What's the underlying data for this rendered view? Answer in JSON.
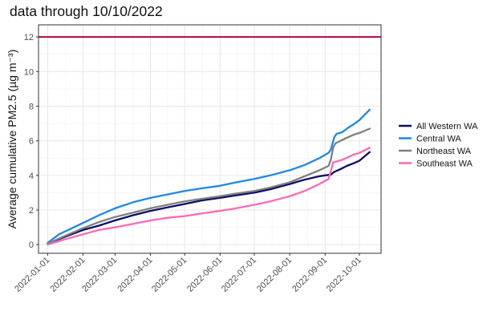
{
  "chart_data": {
    "type": "line",
    "title": "data through 10/10/2022",
    "ylabel": "Average cumulative PM2.5 (µg m⁻³)",
    "xlabel": "",
    "x_tick_labels": [
      "2022-01-01",
      "2022-02-01",
      "2022-03-01",
      "2022-04-01",
      "2022-05-01",
      "2022-06-01",
      "2022-07-01",
      "2022-08-01",
      "2022-09-01",
      "2022-10-01"
    ],
    "x_tick_days": [
      0,
      31,
      59,
      90,
      120,
      151,
      181,
      212,
      243,
      273
    ],
    "xlim_days": [
      -8,
      292
    ],
    "ylim": [
      -0.5,
      12.7
    ],
    "y_ticks": [
      0,
      2,
      4,
      6,
      8,
      10,
      12
    ],
    "grid": true,
    "legend_position": "right",
    "reference_line": {
      "y": 12,
      "color": "#b0004d"
    },
    "series": [
      {
        "name": "All Western WA",
        "color": "#0b0b6b",
        "x": [
          0,
          15,
          31,
          45,
          59,
          75,
          90,
          105,
          120,
          135,
          151,
          165,
          181,
          195,
          212,
          225,
          238,
          248,
          251,
          256,
          262,
          268,
          273,
          282
        ],
        "y": [
          0.05,
          0.45,
          0.85,
          1.1,
          1.4,
          1.7,
          1.95,
          2.15,
          2.35,
          2.55,
          2.7,
          2.85,
          3.0,
          3.2,
          3.5,
          3.75,
          3.95,
          4.05,
          4.2,
          4.35,
          4.55,
          4.7,
          4.85,
          5.35
        ]
      },
      {
        "name": "Central WA",
        "color": "#1e88e5",
        "x": [
          0,
          10,
          31,
          45,
          59,
          75,
          90,
          105,
          120,
          135,
          151,
          165,
          181,
          195,
          212,
          225,
          238,
          246,
          248,
          251,
          253,
          258,
          263,
          268,
          273,
          282
        ],
        "y": [
          0.1,
          0.6,
          1.25,
          1.7,
          2.1,
          2.45,
          2.7,
          2.9,
          3.1,
          3.25,
          3.4,
          3.6,
          3.8,
          4.0,
          4.3,
          4.6,
          5.0,
          5.3,
          5.5,
          6.2,
          6.4,
          6.5,
          6.75,
          6.95,
          7.2,
          7.8
        ]
      },
      {
        "name": "Northeast WA",
        "color": "#7f7f7f",
        "x": [
          0,
          15,
          31,
          45,
          59,
          75,
          90,
          105,
          120,
          135,
          151,
          165,
          181,
          195,
          212,
          225,
          238,
          246,
          248,
          250,
          252,
          258,
          263,
          268,
          273,
          282
        ],
        "y": [
          0.05,
          0.5,
          0.95,
          1.3,
          1.6,
          1.85,
          2.1,
          2.3,
          2.5,
          2.65,
          2.8,
          2.95,
          3.1,
          3.3,
          3.6,
          3.95,
          4.3,
          4.55,
          4.9,
          5.6,
          5.85,
          6.05,
          6.2,
          6.35,
          6.45,
          6.7
        ]
      },
      {
        "name": "Southeast WA",
        "color": "#ff69b4",
        "x": [
          0,
          15,
          31,
          45,
          59,
          75,
          90,
          105,
          120,
          135,
          151,
          165,
          181,
          195,
          212,
          225,
          238,
          246,
          248,
          250,
          258,
          263,
          268,
          273,
          282
        ],
        "y": [
          0.0,
          0.3,
          0.6,
          0.85,
          1.0,
          1.2,
          1.4,
          1.55,
          1.65,
          1.8,
          1.95,
          2.1,
          2.3,
          2.5,
          2.8,
          3.1,
          3.5,
          3.8,
          4.25,
          4.75,
          4.9,
          5.05,
          5.2,
          5.3,
          5.6
        ]
      }
    ]
  }
}
